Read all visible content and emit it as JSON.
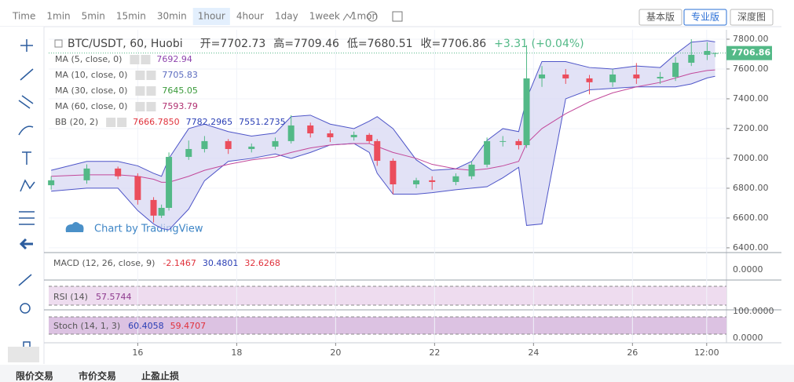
{
  "toolbar": {
    "intervals": [
      "Time",
      "1min",
      "5min",
      "15min",
      "30min",
      "1hour",
      "4hour",
      "1day",
      "1week",
      "1mon"
    ],
    "active_index": 5,
    "views": [
      "基本版",
      "专业版",
      "深度图"
    ],
    "active_view": 1
  },
  "chart_data": {
    "type": "candlestick",
    "header": {
      "symbol": "BTC/USDT, 60, Huobi",
      "open": "开=7702.73",
      "high": "高=7709.46",
      "low": "低=7680.51",
      "close": "收=7706.86",
      "change": "+3.31 (+0.04%)"
    },
    "indicators": [
      {
        "label": "MA (5, close, 0)",
        "values": [
          "7692.94"
        ],
        "colors": [
          "#8e44ad"
        ]
      },
      {
        "label": "MA (10, close, 0)",
        "values": [
          "7705.83"
        ],
        "colors": [
          "#5b6bbf"
        ]
      },
      {
        "label": "MA (30, close, 0)",
        "values": [
          "7645.05"
        ],
        "colors": [
          "#3a9a3a"
        ]
      },
      {
        "label": "MA (60, close, 0)",
        "values": [
          "7593.79"
        ],
        "colors": [
          "#b03070"
        ]
      },
      {
        "label": "BB (20, 2)",
        "values": [
          "7666.7850",
          "7782.2965",
          "7551.2735"
        ],
        "colors": [
          "#e0323c",
          "#2a3fb5",
          "#2a3fb5"
        ]
      }
    ],
    "watermark": "Chart by TradingView",
    "x": [
      14.25,
      14.97,
      15.6,
      16,
      16.32,
      16.48,
      16.63,
      17.03,
      17.35,
      17.83,
      18.3,
      18.78,
      19.1,
      19.49,
      19.89,
      20.37,
      20.68,
      20.84,
      21.16,
      21.63,
      21.95,
      22.43,
      22.75,
      23.06,
      23.38,
      23.7,
      23.86,
      24.17,
      24.65,
      25.13,
      25.6,
      26.08,
      26.56,
      26.87,
      27.19,
      27.51,
      27.67
    ],
    "open": [
      6820,
      6853,
      6932,
      6880,
      6721,
      6616,
      6668,
      7010,
      7063,
      7116,
      7063,
      7079,
      7116,
      7221,
      7168,
      7142,
      7158,
      7116,
      6984,
      6826,
      6853,
      6842,
      6880,
      6958,
      7116,
      7116,
      7089,
      7537,
      7563,
      7537,
      7511,
      7563,
      7537,
      7547,
      7642,
      7695,
      7702.73
    ],
    "high": [
      6880,
      6960,
      6945,
      6900,
      6740,
      6690,
      7040,
      7120,
      7150,
      7130,
      7100,
      7140,
      7290,
      7240,
      7190,
      7180,
      7170,
      7130,
      7000,
      6870,
      6880,
      6900,
      6980,
      7140,
      7150,
      7130,
      7760,
      7620,
      7600,
      7560,
      7600,
      7640,
      7580,
      7680,
      7800,
      7780,
      7709.46
    ],
    "low": [
      6790,
      6830,
      6860,
      6690,
      6570,
      6600,
      6650,
      6990,
      7040,
      7030,
      7040,
      7060,
      7100,
      7140,
      7110,
      7120,
      7100,
      6950,
      6760,
      6800,
      6790,
      6820,
      6860,
      6940,
      7080,
      7060,
      7070,
      7480,
      7500,
      7430,
      7480,
      7500,
      7500,
      7520,
      7620,
      7660,
      7680.51
    ],
    "close": [
      6853,
      6932,
      6880,
      6721,
      6616,
      6668,
      7010,
      7063,
      7116,
      7063,
      7079,
      7116,
      7221,
      7168,
      7142,
      7158,
      7116,
      6984,
      6826,
      6853,
      6842,
      6880,
      6958,
      7116,
      7116,
      7089,
      7537,
      7563,
      7537,
      7511,
      7563,
      7537,
      7547,
      7642,
      7695,
      7721,
      7706.86
    ],
    "bb_upper": [
      6920,
      6980,
      6980,
      6950,
      6900,
      6880,
      7000,
      7200,
      7230,
      7180,
      7150,
      7170,
      7280,
      7290,
      7230,
      7200,
      7250,
      7280,
      7200,
      6990,
      6920,
      6930,
      6980,
      7120,
      7200,
      7180,
      7400,
      7650,
      7650,
      7610,
      7600,
      7620,
      7610,
      7700,
      7780,
      7790,
      7782.3
    ],
    "bb_lower": [
      6780,
      6800,
      6800,
      6650,
      6560,
      6530,
      6520,
      6660,
      6850,
      6980,
      7000,
      7030,
      7000,
      7040,
      7090,
      7100,
      7040,
      6900,
      6760,
      6760,
      6770,
      6790,
      6800,
      6810,
      6870,
      6940,
      6550,
      6560,
      7400,
      7460,
      7470,
      7480,
      7480,
      7480,
      7500,
      7540,
      7551.27
    ],
    "ma60": [
      6880,
      6890,
      6890,
      6880,
      6860,
      6840,
      6840,
      6880,
      6920,
      6960,
      6990,
      7010,
      7040,
      7070,
      7090,
      7100,
      7100,
      7080,
      7040,
      7000,
      6960,
      6930,
      6920,
      6930,
      6950,
      6980,
      7100,
      7200,
      7300,
      7380,
      7440,
      7480,
      7510,
      7540,
      7570,
      7590,
      7593.79
    ],
    "last_price": 7706.86,
    "colors": {
      "up": "#53b987",
      "down": "#eb4d5c",
      "band": "#d6d6f2",
      "band_edge": "#4e55c8",
      "ma60": "#c2489a"
    },
    "xlim": [
      14.2,
      27.9
    ],
    "ylim": [
      6368,
      7863
    ],
    "xticks": [
      16,
      18,
      20,
      22,
      24,
      26,
      {
        "value": 27.5,
        "label": "12:00"
      }
    ],
    "yticks": [
      {
        "value": 6400,
        "label": "6400.00"
      },
      {
        "value": 6600,
        "label": "6600.00"
      },
      {
        "value": 6800,
        "label": "6800.00"
      },
      {
        "value": 7000,
        "label": "7000.00"
      },
      {
        "value": 7200,
        "label": "7200.00"
      },
      {
        "value": 7400,
        "label": "7400.00"
      },
      {
        "value": 7600,
        "label": "7600.00"
      },
      {
        "value": 7800,
        "label": "7800.00"
      }
    ],
    "panes": [
      {
        "label": "MACD (12, 26, close, 9)",
        "values": [
          "-2.1467",
          "30.4801",
          "32.6268"
        ],
        "colors": [
          "#e0323c",
          "#2a3fb5",
          "#e0323c"
        ],
        "ticks": [
          "0.0000"
        ]
      },
      {
        "label": "RSI (14)",
        "values": [
          "57.5744"
        ],
        "colors": [
          "#8e3a8e"
        ],
        "ticks": []
      },
      {
        "label": "Stoch (14, 1, 3)",
        "values": [
          "60.4058",
          "59.4707"
        ],
        "colors": [
          "#2a3fb5",
          "#e0323c"
        ],
        "ticks": [
          "100.0000",
          "0.0000"
        ]
      }
    ]
  },
  "footer": {
    "tabs": [
      "限价交易",
      "市价交易",
      "止盈止损"
    ]
  }
}
